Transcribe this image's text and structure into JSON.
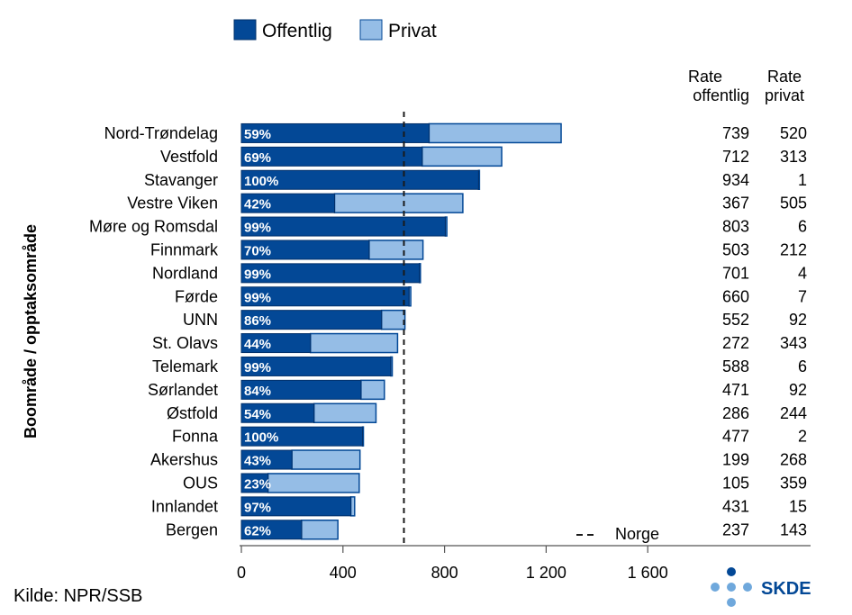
{
  "chart_data": {
    "type": "bar",
    "orientation": "horizontal",
    "stacked": true,
    "ylabel": "Boområde / opptaksområde",
    "xlim": [
      0,
      2250
    ],
    "xticks": [
      0,
      400,
      800,
      1200,
      1600
    ],
    "xtick_labels": [
      "0",
      "400",
      "800",
      "1 200",
      "1 600"
    ],
    "reference_line": {
      "value": 640,
      "label": "Norge"
    },
    "categories": [
      "Nord-Trøndelag",
      "Vestfold",
      "Stavanger",
      "Vestre Viken",
      "Møre og Romsdal",
      "Finnmark",
      "Nordland",
      "Førde",
      "UNN",
      "St. Olavs",
      "Telemark",
      "Sørlandet",
      "Østfold",
      "Fonna",
      "Akershus",
      "OUS",
      "Innlandet",
      "Bergen"
    ],
    "series": [
      {
        "name": "Offentlig",
        "color": "#034896",
        "values": [
          739,
          712,
          934,
          367,
          803,
          503,
          701,
          660,
          552,
          272,
          588,
          471,
          286,
          477,
          199,
          105,
          431,
          237
        ]
      },
      {
        "name": "Privat",
        "color": "#95bde6",
        "values": [
          520,
          313,
          1,
          505,
          6,
          212,
          4,
          7,
          92,
          343,
          6,
          92,
          244,
          2,
          268,
          359,
          15,
          143
        ]
      }
    ],
    "bar_labels": [
      "59%",
      "69%",
      "100%",
      "42%",
      "99%",
      "70%",
      "99%",
      "99%",
      "86%",
      "44%",
      "99%",
      "84%",
      "54%",
      "100%",
      "43%",
      "23%",
      "97%",
      "62%"
    ],
    "table_headers": [
      [
        "Rate",
        "offentlig"
      ],
      [
        "Rate",
        "privat"
      ]
    ],
    "table_offentlig": [
      "739",
      "712",
      "934",
      "367",
      "803",
      "503",
      "701",
      "660",
      "552",
      "272",
      "588",
      "471",
      "286",
      "477",
      "199",
      "105",
      "431",
      "237"
    ],
    "table_privat": [
      "520",
      "313",
      "1",
      "505",
      "6",
      "212",
      "4",
      "7",
      "92",
      "343",
      "6",
      "92",
      "244",
      "2",
      "268",
      "359",
      "15",
      "143"
    ],
    "legend_position": "top"
  },
  "footer": {
    "source": "Kilde: NPR/SSB"
  },
  "logo": {
    "text": "SKDE",
    "color": "#034896",
    "dot_color": "#6fa8dc"
  }
}
